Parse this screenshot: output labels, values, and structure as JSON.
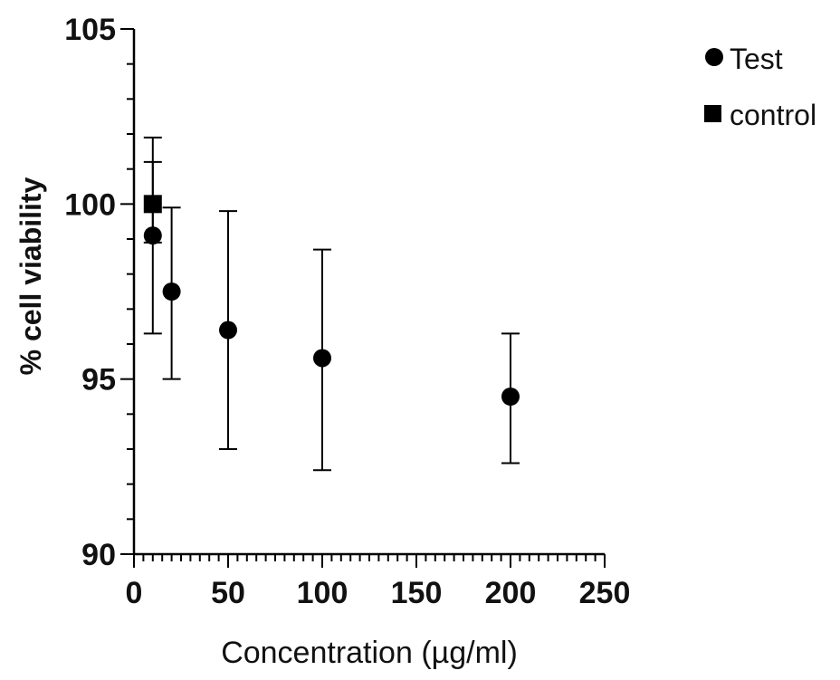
{
  "chart_data": {
    "type": "scatter",
    "xlabel": "Concentration (µg/ml)",
    "ylabel": "% cell viability",
    "xlim": [
      0,
      250
    ],
    "ylim": [
      90,
      105
    ],
    "x_ticks": [
      "0",
      "50",
      "100",
      "150",
      "200",
      "250"
    ],
    "y_ticks": [
      "90",
      "95",
      "100",
      "105"
    ],
    "grid": false,
    "legend": {
      "placement": "top-right"
    },
    "series": [
      {
        "name": "Test",
        "marker": "circle",
        "color": "#000000",
        "points": [
          {
            "x": 10,
            "y": 99.1,
            "err_low": 96.3,
            "err_high": 101.2
          },
          {
            "x": 20,
            "y": 97.5,
            "err_low": 95.0,
            "err_high": 99.9
          },
          {
            "x": 50,
            "y": 96.4,
            "err_low": 93.0,
            "err_high": 99.8
          },
          {
            "x": 100,
            "y": 95.6,
            "err_low": 92.4,
            "err_high": 98.7
          },
          {
            "x": 200,
            "y": 94.5,
            "err_low": 92.6,
            "err_high": 96.3
          }
        ]
      },
      {
        "name": "control",
        "marker": "square",
        "color": "#000000",
        "points": [
          {
            "x": 10,
            "y": 100.0,
            "err_low": 98.9,
            "err_high": 101.9
          }
        ]
      }
    ]
  }
}
